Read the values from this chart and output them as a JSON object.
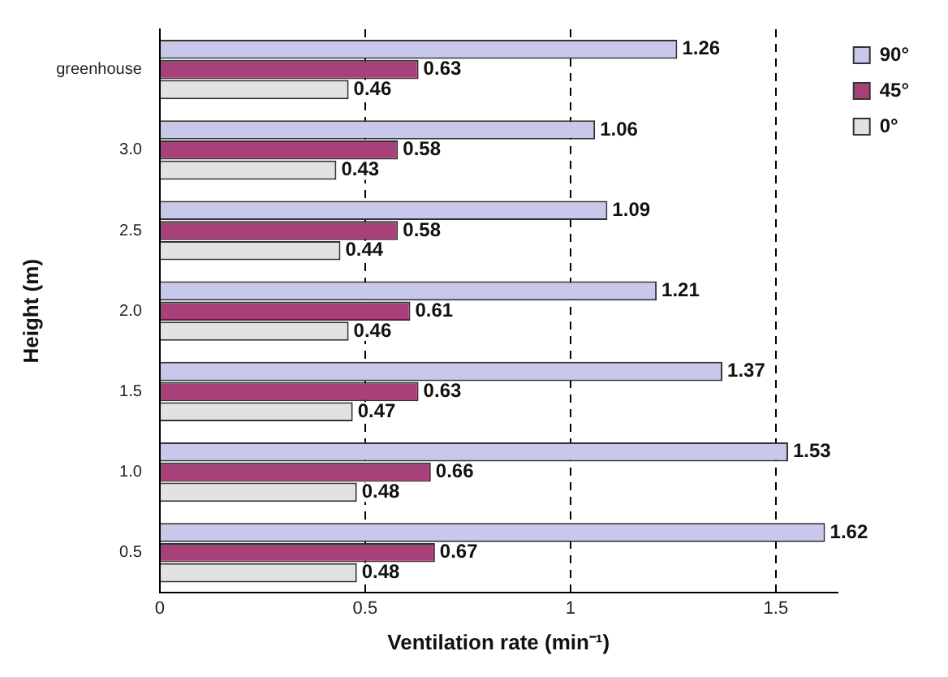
{
  "chart_data": {
    "type": "bar",
    "orientation": "horizontal",
    "xlabel": "Ventilation rate (min⁻¹)",
    "ylabel": "Height (m)",
    "categories": [
      "greenhouse",
      "3.0",
      "2.5",
      "2.0",
      "1.5",
      "1.0",
      "0.5"
    ],
    "series": [
      {
        "name": "90°",
        "color": "#c8c8ea",
        "values": [
          1.26,
          1.06,
          1.09,
          1.21,
          1.37,
          1.53,
          1.62
        ]
      },
      {
        "name": "45°",
        "color": "#a8407a",
        "values": [
          0.63,
          0.58,
          0.58,
          0.61,
          0.63,
          0.66,
          0.67
        ]
      },
      {
        "name": "0°",
        "color": "#e2e2e2",
        "values": [
          0.46,
          0.43,
          0.44,
          0.46,
          0.47,
          0.48,
          0.48
        ]
      }
    ],
    "xlim": [
      0,
      1.65
    ],
    "xticks": [
      0,
      0.5,
      1,
      1.5
    ],
    "grid": "x",
    "line_style": "dashed",
    "legend": "top right",
    "data_labels": true
  }
}
